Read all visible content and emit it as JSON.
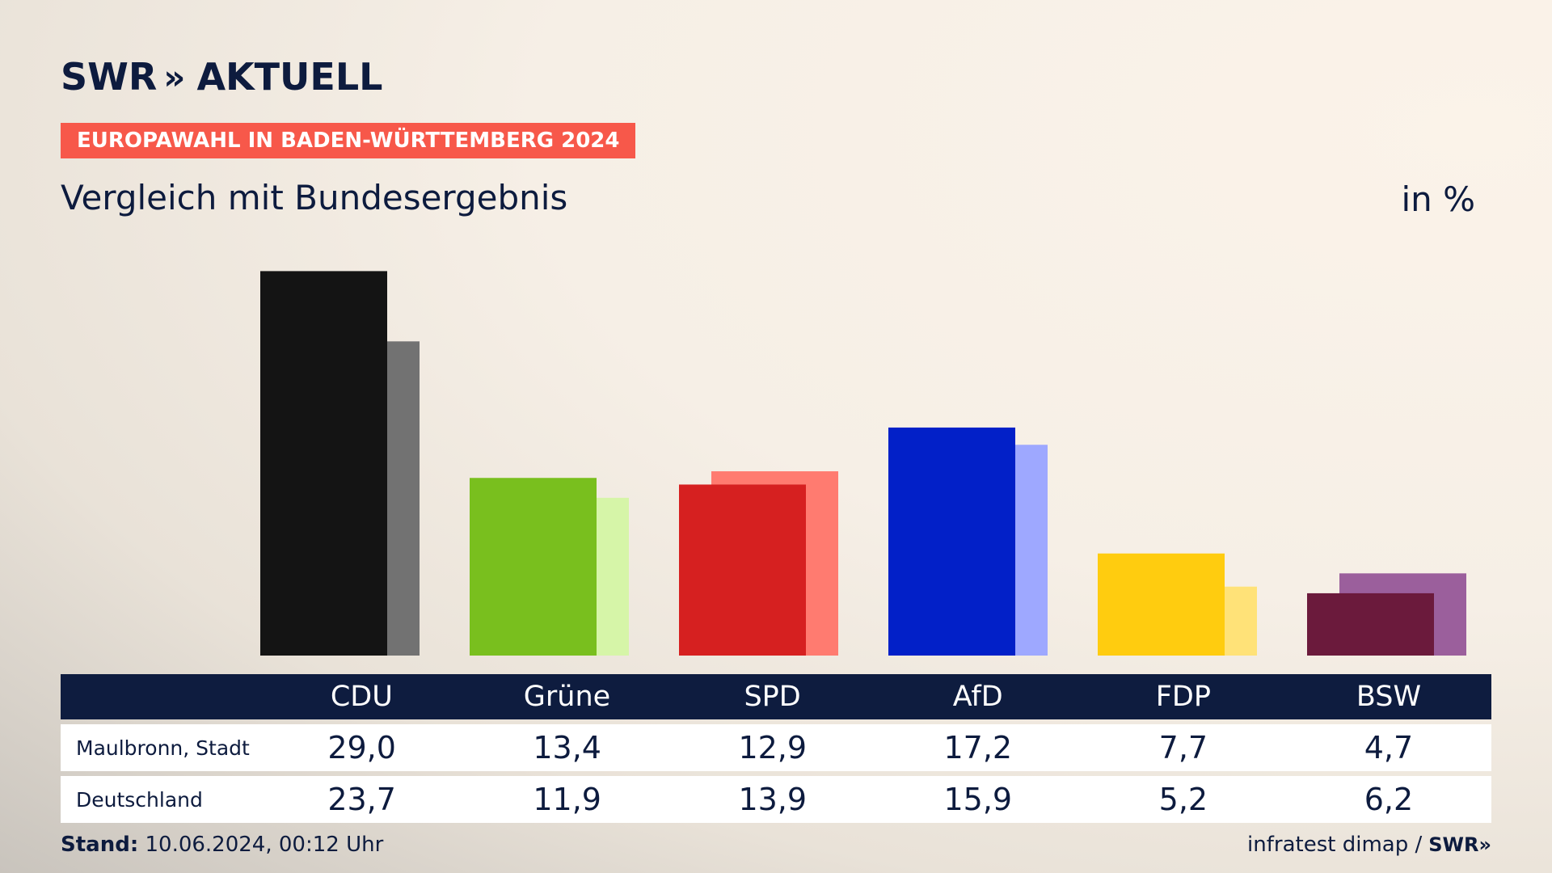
{
  "header": {
    "brand": "SWR",
    "brand_chevrons": "»",
    "brand_suffix": "AKTUELL",
    "badge": "EUROPAWAHL IN BADEN-WÜRTTEMBERG 2024",
    "subtitle": "Vergleich mit Bundesergebnis",
    "unit": "in %"
  },
  "colors": {
    "badge_bg": "#f7584a",
    "navy": "#0e1c3f"
  },
  "chart_data": {
    "type": "bar",
    "categories": [
      "CDU",
      "Grüne",
      "SPD",
      "AfD",
      "FDP",
      "BSW"
    ],
    "series": [
      {
        "name": "Maulbronn, Stadt",
        "values": [
          29.0,
          13.4,
          12.9,
          17.2,
          7.7,
          4.7
        ]
      },
      {
        "name": "Deutschland",
        "values": [
          23.7,
          11.9,
          13.9,
          15.9,
          5.2,
          6.2
        ]
      }
    ],
    "colors_primary": [
      "#141414",
      "#79bf1e",
      "#d62020",
      "#0220c8",
      "#ffcc0f",
      "#6b1a3c"
    ],
    "colors_secondary": [
      "#727272",
      "#d6f5a8",
      "#ff7b70",
      "#9ea8ff",
      "#ffe278",
      "#9b5f9c"
    ],
    "ylim": [
      0,
      30
    ]
  },
  "table": {
    "headers": [
      "CDU",
      "Grüne",
      "SPD",
      "AfD",
      "FDP",
      "BSW"
    ],
    "rows": [
      {
        "label": "Maulbronn, Stadt",
        "values": [
          "29,0",
          "13,4",
          "12,9",
          "17,2",
          "7,7",
          "4,7"
        ]
      },
      {
        "label": "Deutschland",
        "values": [
          "23,7",
          "11,9",
          "13,9",
          "15,9",
          "5,2",
          "6,2"
        ]
      }
    ]
  },
  "footer": {
    "stand_label": "Stand:",
    "stand_value": "10.06.2024, 00:12 Uhr",
    "source": "infratest dimap /",
    "source_brand": "SWR»"
  }
}
